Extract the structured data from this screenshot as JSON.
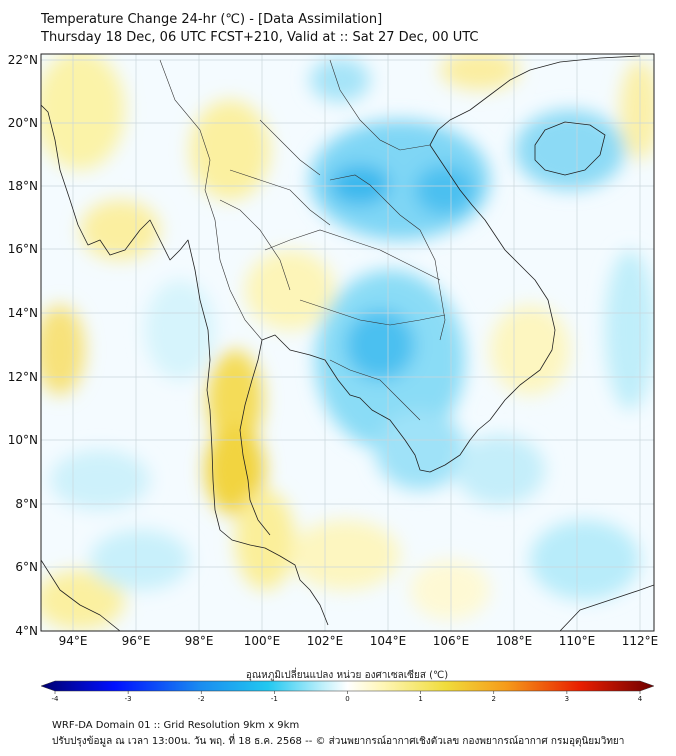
{
  "header": {
    "title": "Temperature Change 24-hr (℃) - [Data Assimilation]",
    "subtitle": "Thursday 18 Dec, 06 UTC FCST+210, Valid at :: Sat 27 Dec, 00 UTC"
  },
  "map": {
    "lat_ticks": [
      "22°N",
      "20°N",
      "18°N",
      "16°N",
      "14°N",
      "12°N",
      "10°N",
      "8°N",
      "6°N",
      "4°N"
    ],
    "lon_ticks": [
      "94°E",
      "96°E",
      "98°E",
      "100°E",
      "102°E",
      "104°E",
      "106°E",
      "108°E",
      "110°E",
      "112°E"
    ],
    "lat_range": [
      4,
      22.2
    ],
    "lon_range": [
      93,
      112.6
    ]
  },
  "colorbar": {
    "label": "อุณหภูมิเปลี่ยนแปลง หน่วย องศาเซลเซียส (℃)",
    "ticks": [
      "-4",
      "-3",
      "-2",
      "-1",
      "0",
      "1",
      "2",
      "3",
      "4"
    ],
    "range": [
      -4,
      4
    ],
    "colors": {
      "min": "#00006e",
      "cold": "#0010ff",
      "cool": "#22c8f0",
      "neutral": "#ffffff",
      "warm": "#f0dc3c",
      "hot": "#e81e00",
      "max": "#6e0000"
    }
  },
  "footer": {
    "line1": "WRF-DA Domain 01 :: Grid Resolution 9km x 9km",
    "line2": "ปรับปรุงข้อมูล ณ เวลา 13:00น. วัน พฤ. ที่ 18 ธ.ค. 2568 -- © ส่วนพยากรณ์อากาศเชิงตัวเลข กองพยากรณ์อากาศ กรมอุตุนิยมวิทยา"
  }
}
